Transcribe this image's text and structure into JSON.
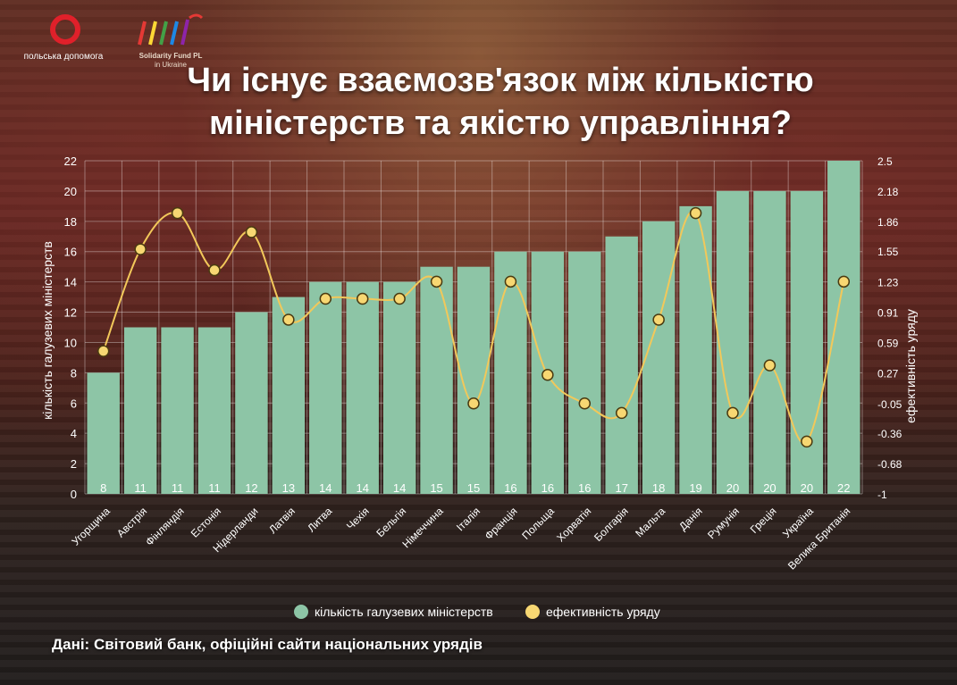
{
  "logos": {
    "polish_aid_text": "польська допомога",
    "solidarity_line1": "Solidarity Fund PL",
    "solidarity_line2": "in Ukraine"
  },
  "title_line1": "Чи існує взаємозв'язок між кількістю",
  "title_line2": "міністерств та якістю управління?",
  "source": "Дані: Світовий банк, офіційні сайти національних урядів",
  "colors": {
    "bars": "#8dc5a6",
    "line": "#f2c85a",
    "marker_fill": "#f7d772",
    "marker_stroke": "#4a3a10",
    "text": "#ffffff"
  },
  "chart_data": {
    "type": "bar",
    "categories": [
      "Угорщина",
      "Австрія",
      "Фінляндія",
      "Естонія",
      "Нідерланди",
      "Латвія",
      "Литва",
      "Чехія",
      "Бельгія",
      "Німеччина",
      "Італія",
      "Франція",
      "Польща",
      "Хорватія",
      "Болгарія",
      "Мальта",
      "Данія",
      "Румунія",
      "Греція",
      "Україна",
      "Велика Британія"
    ],
    "series": [
      {
        "name": "кількість галузевих міністерств",
        "type": "bar",
        "axis": "left",
        "values": [
          8,
          11,
          11,
          11,
          12,
          13,
          14,
          14,
          14,
          15,
          15,
          16,
          16,
          16,
          17,
          18,
          19,
          20,
          20,
          20,
          22
        ]
      },
      {
        "name": "ефективність уряду",
        "type": "line",
        "axis": "right",
        "smooth": true,
        "values": [
          0.5,
          1.57,
          1.95,
          1.35,
          1.75,
          0.83,
          1.05,
          1.05,
          1.05,
          1.23,
          -0.05,
          1.23,
          0.25,
          -0.05,
          -0.15,
          0.83,
          1.95,
          -0.15,
          0.35,
          -0.45,
          1.23
        ]
      }
    ],
    "ylabel": "кількість галузевих міністерств",
    "y2label": "ефективність уряду",
    "ylim": [
      0,
      22
    ],
    "y_ticks": [
      0,
      2,
      4,
      6,
      8,
      10,
      12,
      14,
      16,
      18,
      20,
      22
    ],
    "y2lim": [
      -1,
      2.5
    ],
    "y2_ticks": [
      "-1",
      "-0.68",
      "-0.36",
      "-0.05",
      "0.27",
      "0.59",
      "0.91",
      "1.23",
      "1.55",
      "1.86",
      "2.18",
      "2.5"
    ],
    "legend": "bottom",
    "grid": true
  }
}
